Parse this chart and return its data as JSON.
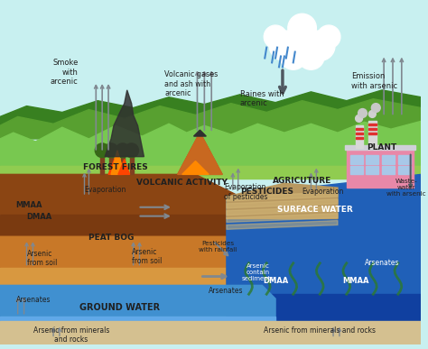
{
  "labels": {
    "smoke": "Smoke\nwith\narcenic",
    "volcanic_gases": "Volcanic gases\nand ash with\narcenic",
    "raines": "Raines with\narcenic",
    "emission": "Emission\nwith arsenic",
    "volcanic_activity": "VOLCANIC ACTIVITY",
    "forest_fires": "FOREST FIRES",
    "evaporation1": "Evaporation",
    "evaporation_pesticides": "Evaporation\nof pesticides",
    "agriculture": "AGRICUTURE",
    "evaporation2": "Evaporation",
    "plant": "PLANT",
    "waste_water": "Waste-\nwater\nwith arsenic",
    "mmaa_left": "MMAA",
    "dmaa_left": "DMAA",
    "peat_bog": "PEAT BOG",
    "arsenic_soil1": "Arsenic\nfrom soil",
    "arsenic_soil2": "Arsenic\nfrom soil",
    "arsenates_left": "Arsenates",
    "ground_water": "GROUND WATER",
    "pesticides": "PESTICIDES",
    "arsenates_mid": "Arsenates",
    "pesticides_rainfall": "Pesticides\nwith rainfall",
    "surface_water": "SURFACE WATER",
    "arsenates_right": "Arsenates",
    "dmaa_right": "DMAA",
    "mmaa_right": "MMAA",
    "arsenic_sediments": "Arsenic\ncontain\nsediments",
    "arsenic_minerals_left": "Arsenic from minerals\nand rocks",
    "arsenic_minerals_right": "Arsenic from minerals and rocks"
  },
  "colors": {
    "sky": "#c8f0f0",
    "sky2": "#a0e8e8",
    "cloud_white": "#ffffff",
    "cloud_blue": "#ddeeff",
    "green_bright": "#78c850",
    "green_mid": "#58a030",
    "green_dark": "#388020",
    "green_ground": "#90cc50",
    "peat_top": "#8B4513",
    "peat_mid": "#7a3a10",
    "peat_dark": "#5c2a08",
    "soil_orange": "#c87828",
    "soil_light": "#d89840",
    "gw_blue": "#4090d0",
    "gw_light": "#60a8e8",
    "sw_blue": "#2060b8",
    "sw_dark": "#1040a0",
    "bottom_sand": "#d4c090",
    "volcano_orange": "#c86820",
    "volcano_dark": "#a04810",
    "fire_orange": "#ff8800",
    "fire_red": "#ff4400",
    "smoke_dark": "#303030",
    "plant_pink": "#e888a8",
    "plant_gray": "#c0c8d0",
    "chimney_gray": "#d8d8d8",
    "chimney_red": "#e03030",
    "rain_blue": "#4488cc",
    "arrow_gray": "#808890",
    "arrow_dark": "#505860",
    "text_dark": "#202020",
    "text_white": "#ffffff",
    "agri_brown": "#b89860",
    "agri_stripe": "#d4b878",
    "tree_brown": "#804020",
    "tree_green": "#386818"
  }
}
